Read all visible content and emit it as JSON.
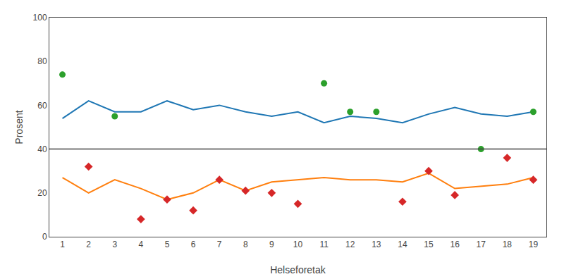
{
  "chart_data": {
    "type": "line",
    "x": [
      1,
      2,
      3,
      4,
      5,
      6,
      7,
      8,
      9,
      10,
      11,
      12,
      13,
      14,
      15,
      16,
      17,
      18,
      19
    ],
    "series": [
      {
        "type": "line",
        "values": [
          54,
          62,
          57,
          57,
          62,
          58,
          60,
          57,
          55,
          57,
          52,
          55,
          54,
          52,
          56,
          59,
          56,
          55,
          57
        ]
      },
      {
        "type": "line",
        "values": [
          27,
          20,
          26,
          22,
          17,
          20,
          26,
          21,
          25,
          26,
          27,
          26,
          26,
          25,
          29,
          22,
          23,
          24,
          27
        ]
      },
      {
        "type": "scatter",
        "marker": "circle",
        "values": [
          74,
          null,
          55,
          null,
          null,
          null,
          null,
          null,
          null,
          null,
          70,
          57,
          57,
          null,
          null,
          null,
          40,
          null,
          57
        ]
      },
      {
        "type": "scatter",
        "marker": "diamond",
        "values": [
          null,
          32,
          null,
          8,
          17,
          12,
          26,
          21,
          20,
          15,
          null,
          null,
          null,
          16,
          30,
          19,
          null,
          36,
          26
        ]
      }
    ],
    "hline": 40,
    "xlabel": "Helseforetak",
    "ylabel": "Prosent",
    "xlim": [
      0.5,
      19.5
    ],
    "xticks": [
      1,
      2,
      3,
      4,
      5,
      6,
      7,
      8,
      9,
      10,
      11,
      12,
      13,
      14,
      15,
      16,
      17,
      18,
      19
    ],
    "ylim": [
      0,
      100
    ],
    "yticks": [
      0,
      20,
      40,
      60,
      80,
      100
    ],
    "grid": false
  }
}
